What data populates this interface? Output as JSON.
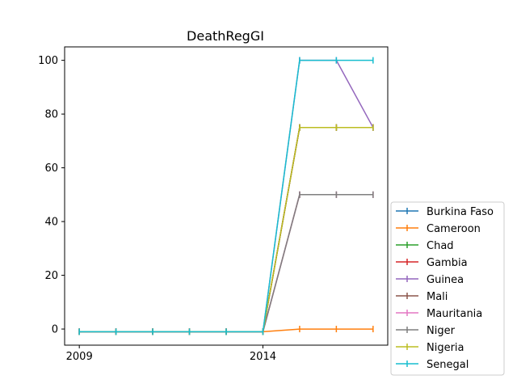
{
  "chart_data": {
    "type": "line",
    "title": "DeathRegGI",
    "xlabel": "",
    "ylabel": "",
    "x": [
      2009,
      2010,
      2011,
      2012,
      2013,
      2014,
      2015,
      2016,
      2017
    ],
    "xlim": [
      2008.6,
      2017.4
    ],
    "ylim": [
      -6,
      105
    ],
    "xticks": [
      2009,
      2014
    ],
    "yticks": [
      0,
      20,
      40,
      60,
      80,
      100
    ],
    "grid": false,
    "legend_position": "lower-right outside",
    "marker": "vertical-tick",
    "series": [
      {
        "name": "Burkina Faso",
        "color": "#1f77b4",
        "values": [
          -1,
          -1,
          -1,
          -1,
          -1,
          -1,
          75,
          75,
          75
        ]
      },
      {
        "name": "Cameroon",
        "color": "#ff7f0e",
        "values": [
          -1,
          -1,
          -1,
          -1,
          -1,
          -1,
          0,
          0,
          0
        ]
      },
      {
        "name": "Chad",
        "color": "#2ca02c",
        "values": [
          -1,
          -1,
          -1,
          -1,
          -1,
          -1,
          75,
          75,
          75
        ]
      },
      {
        "name": "Gambia",
        "color": "#d62728",
        "values": [
          -1,
          -1,
          -1,
          -1,
          -1,
          -1,
          75,
          75,
          75
        ]
      },
      {
        "name": "Guinea",
        "color": "#9467bd",
        "values": [
          -1,
          -1,
          -1,
          -1,
          -1,
          -1,
          100,
          100,
          75
        ]
      },
      {
        "name": "Mali",
        "color": "#8c564b",
        "values": [
          -1,
          -1,
          -1,
          -1,
          -1,
          -1,
          50,
          50,
          50
        ]
      },
      {
        "name": "Mauritania",
        "color": "#e377c2",
        "values": [
          -1,
          -1,
          -1,
          -1,
          -1,
          -1,
          50,
          50,
          50
        ]
      },
      {
        "name": "Niger",
        "color": "#7f7f7f",
        "values": [
          -1,
          -1,
          -1,
          -1,
          -1,
          -1,
          50,
          50,
          50
        ]
      },
      {
        "name": "Nigeria",
        "color": "#bcbd22",
        "values": [
          -1,
          -1,
          -1,
          -1,
          -1,
          -1,
          75,
          75,
          75
        ]
      },
      {
        "name": "Senegal",
        "color": "#17becf",
        "values": [
          -1,
          -1,
          -1,
          -1,
          -1,
          -1,
          100,
          100,
          100
        ]
      }
    ]
  }
}
